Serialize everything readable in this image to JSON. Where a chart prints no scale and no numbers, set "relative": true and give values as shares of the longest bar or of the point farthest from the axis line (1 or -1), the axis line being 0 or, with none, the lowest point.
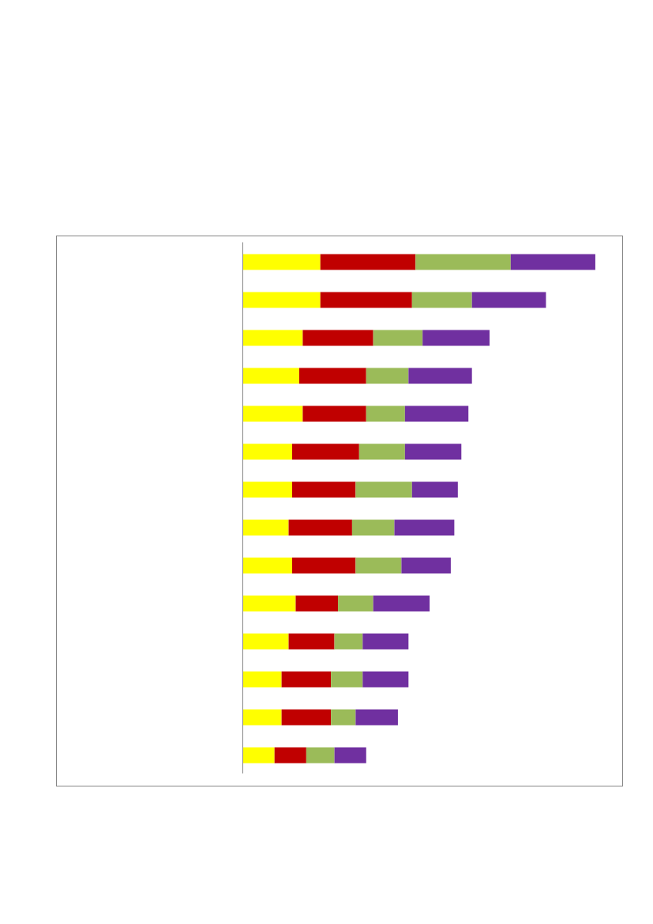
{
  "chart_data": {
    "type": "bar",
    "orientation": "horizontal",
    "stacked": true,
    "relative": true,
    "categories": [
      null,
      null,
      null,
      null,
      null,
      null,
      null,
      null,
      null,
      null,
      null,
      null,
      null,
      null
    ],
    "series": [
      {
        "color": "#ffff00",
        "values": [
          0.22,
          0.22,
          0.17,
          0.16,
          0.17,
          0.14,
          0.14,
          0.13,
          0.14,
          0.15,
          0.13,
          0.11,
          0.11,
          0.09
        ]
      },
      {
        "color": "#c00000",
        "values": [
          0.27,
          0.26,
          0.2,
          0.19,
          0.18,
          0.19,
          0.18,
          0.18,
          0.18,
          0.12,
          0.13,
          0.14,
          0.14,
          0.09
        ]
      },
      {
        "color": "#9bbb59",
        "values": [
          0.27,
          0.17,
          0.14,
          0.12,
          0.11,
          0.13,
          0.16,
          0.12,
          0.13,
          0.1,
          0.08,
          0.09,
          0.07,
          0.08
        ]
      },
      {
        "color": "#7030a0",
        "values": [
          0.24,
          0.21,
          0.19,
          0.18,
          0.18,
          0.16,
          0.13,
          0.17,
          0.14,
          0.16,
          0.13,
          0.13,
          0.12,
          0.09
        ]
      }
    ]
  }
}
